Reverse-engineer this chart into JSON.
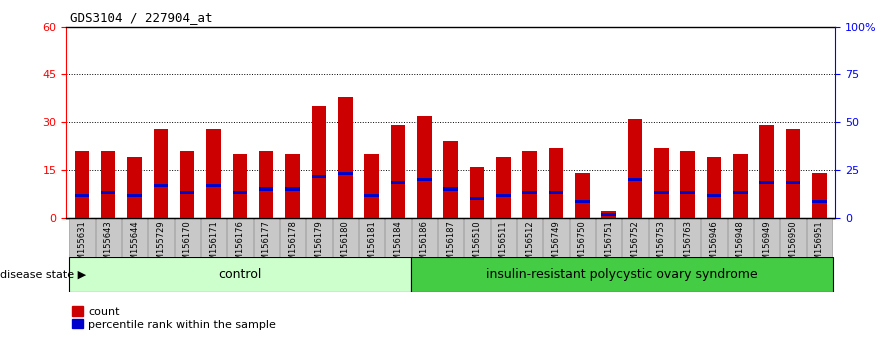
{
  "title": "GDS3104 / 227904_at",
  "samples": [
    "GSM155631",
    "GSM155643",
    "GSM155644",
    "GSM155729",
    "GSM156170",
    "GSM156171",
    "GSM156176",
    "GSM156177",
    "GSM156178",
    "GSM156179",
    "GSM156180",
    "GSM156181",
    "GSM156184",
    "GSM156186",
    "GSM156187",
    "GSM156510",
    "GSM156511",
    "GSM156512",
    "GSM156749",
    "GSM156750",
    "GSM156751",
    "GSM156752",
    "GSM156753",
    "GSM156763",
    "GSM156946",
    "GSM156948",
    "GSM156949",
    "GSM156950",
    "GSM156951"
  ],
  "count_values": [
    21,
    21,
    19,
    28,
    21,
    28,
    20,
    21,
    20,
    35,
    38,
    20,
    29,
    32,
    24,
    16,
    19,
    21,
    22,
    14,
    2,
    31,
    22,
    21,
    19,
    20,
    29,
    28,
    14
  ],
  "percentile_values": [
    7,
    8,
    7,
    10,
    8,
    10,
    8,
    9,
    9,
    13,
    14,
    7,
    11,
    12,
    9,
    6,
    7,
    8,
    8,
    5,
    1,
    12,
    8,
    8,
    7,
    8,
    11,
    11,
    5
  ],
  "n_control": 13,
  "control_label": "control",
  "disease_label": "insulin-resistant polycystic ovary syndrome",
  "bar_color": "#cc0000",
  "percentile_color": "#0000cc",
  "ylim_left": [
    0,
    60
  ],
  "ylim_right": [
    0,
    100
  ],
  "yticks_left": [
    0,
    15,
    30,
    45,
    60
  ],
  "yticks_right": [
    0,
    25,
    50,
    75,
    100
  ],
  "ytick_labels_right": [
    "0",
    "25",
    "50",
    "75",
    "100%"
  ],
  "background_color": "#ffffff",
  "plot_bg_color": "#ffffff",
  "control_bg": "#ccffcc",
  "disease_bg": "#44cc44",
  "label_row_bg": "#c8c8c8",
  "disease_state_label": "disease state",
  "legend_count": "count",
  "legend_percentile": "percentile rank within the sample",
  "bar_width": 0.55,
  "dotted_yticks": [
    15,
    30,
    45
  ]
}
